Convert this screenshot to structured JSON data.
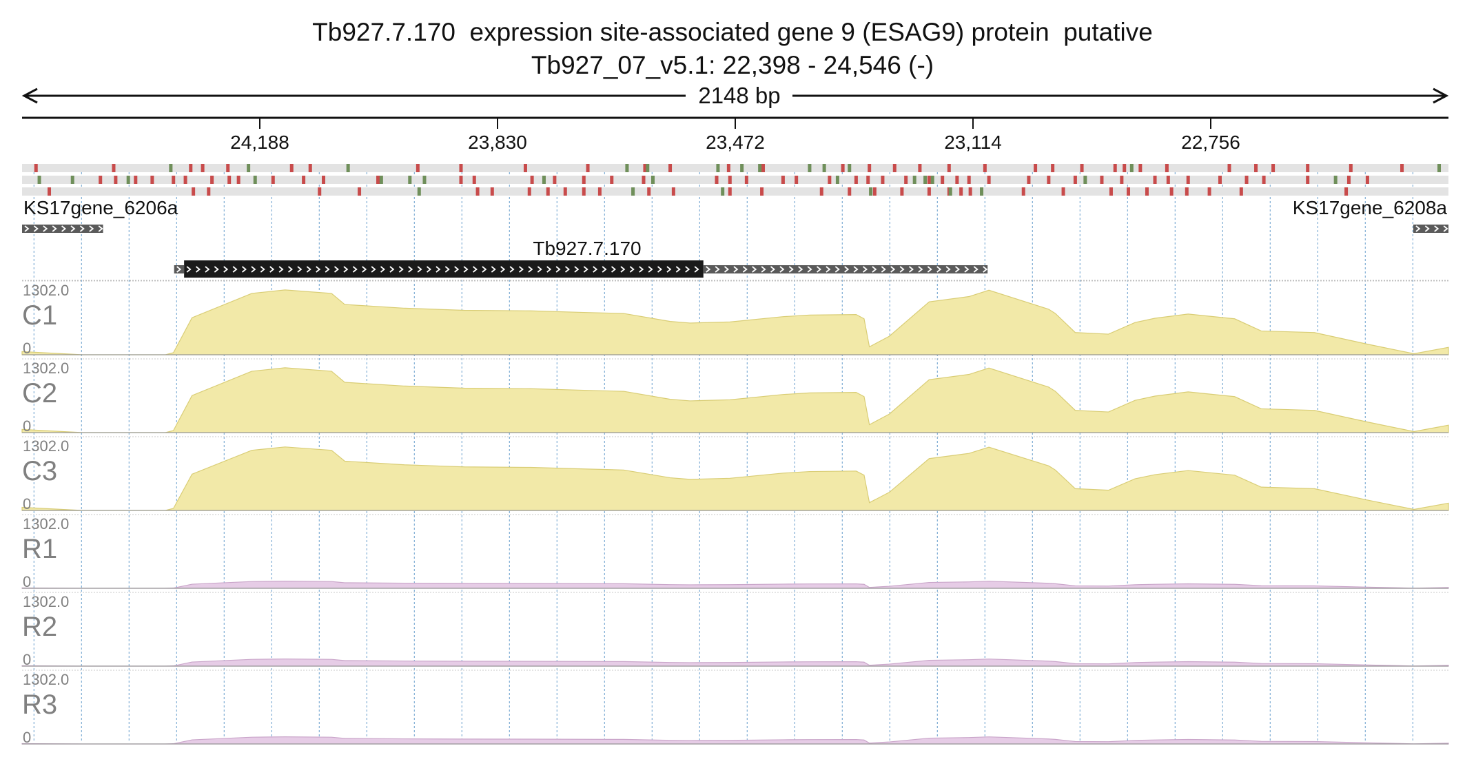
{
  "title": "Tb927.7.170  expression site-associated gene 9 (ESAG9) protein  putative",
  "subtitle": "Tb927_07_v5.1: 22,398 - 24,546 (-)",
  "span_label": "2148 bp",
  "colors": {
    "coverage_C": "#f2e9a8",
    "coverage_R": "#e6cce6",
    "variant_red": "#c84b4b",
    "variant_green": "#6f8f5a",
    "variant_track_bg": "#e3e3e3",
    "gene_body": "#1a1a1a",
    "gene_utr": "#5a5a5a",
    "grid_dotted": "#8ab4d8"
  },
  "chart_data": {
    "type": "area",
    "x_axis": {
      "label": "",
      "direction": "reverse",
      "range": [
        22398,
        24546
      ],
      "ticks": [
        "24,188",
        "23,830",
        "23,472",
        "23,114",
        "22,756"
      ],
      "tick_values": [
        24188,
        23830,
        23472,
        23114,
        22756
      ]
    },
    "genes": [
      {
        "name": "KS17gene_6206a",
        "strand": "-",
        "utr": [
          24424,
          24546
        ]
      },
      {
        "name": "Tb927.7.170",
        "strand": "-",
        "cds": [
          23520,
          24302
        ],
        "utr_5": [
          24302,
          24317
        ],
        "utr_3": [
          23092,
          23520
        ]
      },
      {
        "name": "KS17gene_6208a",
        "strand": "-",
        "utr": [
          22398,
          22451
        ]
      }
    ],
    "tracks": [
      {
        "name": "C1",
        "max": "1302.0",
        "min": "0",
        "scale": 1.0,
        "group": "C"
      },
      {
        "name": "C2",
        "max": "1302.0",
        "min": "0",
        "scale": 1.0,
        "group": "C"
      },
      {
        "name": "C3",
        "max": "1302.0",
        "min": "0",
        "scale": 0.98,
        "group": "C"
      },
      {
        "name": "R1",
        "max": "1302.0",
        "min": "0",
        "scale": 0.11,
        "group": "R"
      },
      {
        "name": "R2",
        "max": "1302.0",
        "min": "0",
        "scale": 0.11,
        "group": "R"
      },
      {
        "name": "R3",
        "max": "1302.0",
        "min": "0",
        "scale": 0.11,
        "group": "R"
      }
    ],
    "coverage_profile": {
      "x": [
        24546,
        24455,
        24330,
        24318,
        24290,
        24200,
        24150,
        24080,
        24060,
        23970,
        23880,
        23780,
        23700,
        23640,
        23570,
        23540,
        23480,
        23400,
        23360,
        23290,
        23278,
        23270,
        23240,
        23180,
        23120,
        23090,
        23000,
        22990,
        22960,
        22910,
        22870,
        22840,
        22790,
        22720,
        22680,
        22600,
        22520,
        22450,
        22398
      ],
      "y": [
        60,
        0,
        0,
        40,
        700,
        1160,
        1225,
        1160,
        950,
        880,
        840,
        830,
        800,
        780,
        630,
        600,
        620,
        720,
        750,
        760,
        680,
        150,
        350,
        1000,
        1100,
        1220,
        860,
        780,
        420,
        390,
        610,
        690,
        770,
        680,
        450,
        420,
        200,
        20,
        140
      ]
    },
    "variant_rows": [
      {
        "row": 1,
        "red": [
          24525,
          24408,
          24292,
          24274,
          24236,
          24140,
          24112,
          23950,
          23885,
          23788,
          23694,
          23608,
          23570,
          23482,
          23430,
          23310,
          23270,
          23232,
          23194,
          23150,
          23096,
          23020,
          22994,
          22950,
          22900,
          22886,
          22862,
          22822,
          22728,
          22688,
          22662,
          22610,
          22545,
          22468
        ],
        "green": [
          24322,
          24205,
          24055,
          23635,
          23604,
          23498,
          23462,
          23435,
          23360,
          23338,
          23300,
          22875,
          22412
        ]
      },
      {
        "row": 2,
        "red": [
          24428,
          24405,
          24375,
          24350,
          24318,
          24300,
          24260,
          24234,
          24220,
          24168,
          24122,
          24092,
          24010,
          23940,
          23885,
          23865,
          23778,
          23744,
          23700,
          23658,
          23610,
          23500,
          23480,
          23455,
          23400,
          23380,
          23330,
          23290,
          23272,
          23250,
          23215,
          23180,
          23160,
          23138,
          23120,
          23090,
          23030,
          23000,
          22960,
          22920,
          22890,
          22840,
          22820,
          22790,
          22742,
          22702,
          22676,
          22610,
          22548,
          22520
        ],
        "green": [
          24520,
          24470,
          24386,
          24195,
          24005,
          23962,
          23940,
          23760,
          23596,
          23318,
          23202,
          23186,
          23175,
          22945,
          22568
        ]
      },
      {
        "row": 3,
        "red": [
          24505,
          24288,
          24265,
          24098,
          24038,
          23860,
          23838,
          23782,
          23754,
          23728,
          23700,
          23676,
          23602,
          23565,
          23480,
          23432,
          23342,
          23300,
          23262,
          23221,
          23180,
          23150,
          23132,
          23118,
          23038,
          22978,
          22906,
          22880,
          22852,
          22815,
          22792,
          22758,
          22710,
          22552
        ],
        "green": [
          23948,
          23626,
          23491,
          23268,
          23148,
          23101
        ]
      }
    ]
  }
}
